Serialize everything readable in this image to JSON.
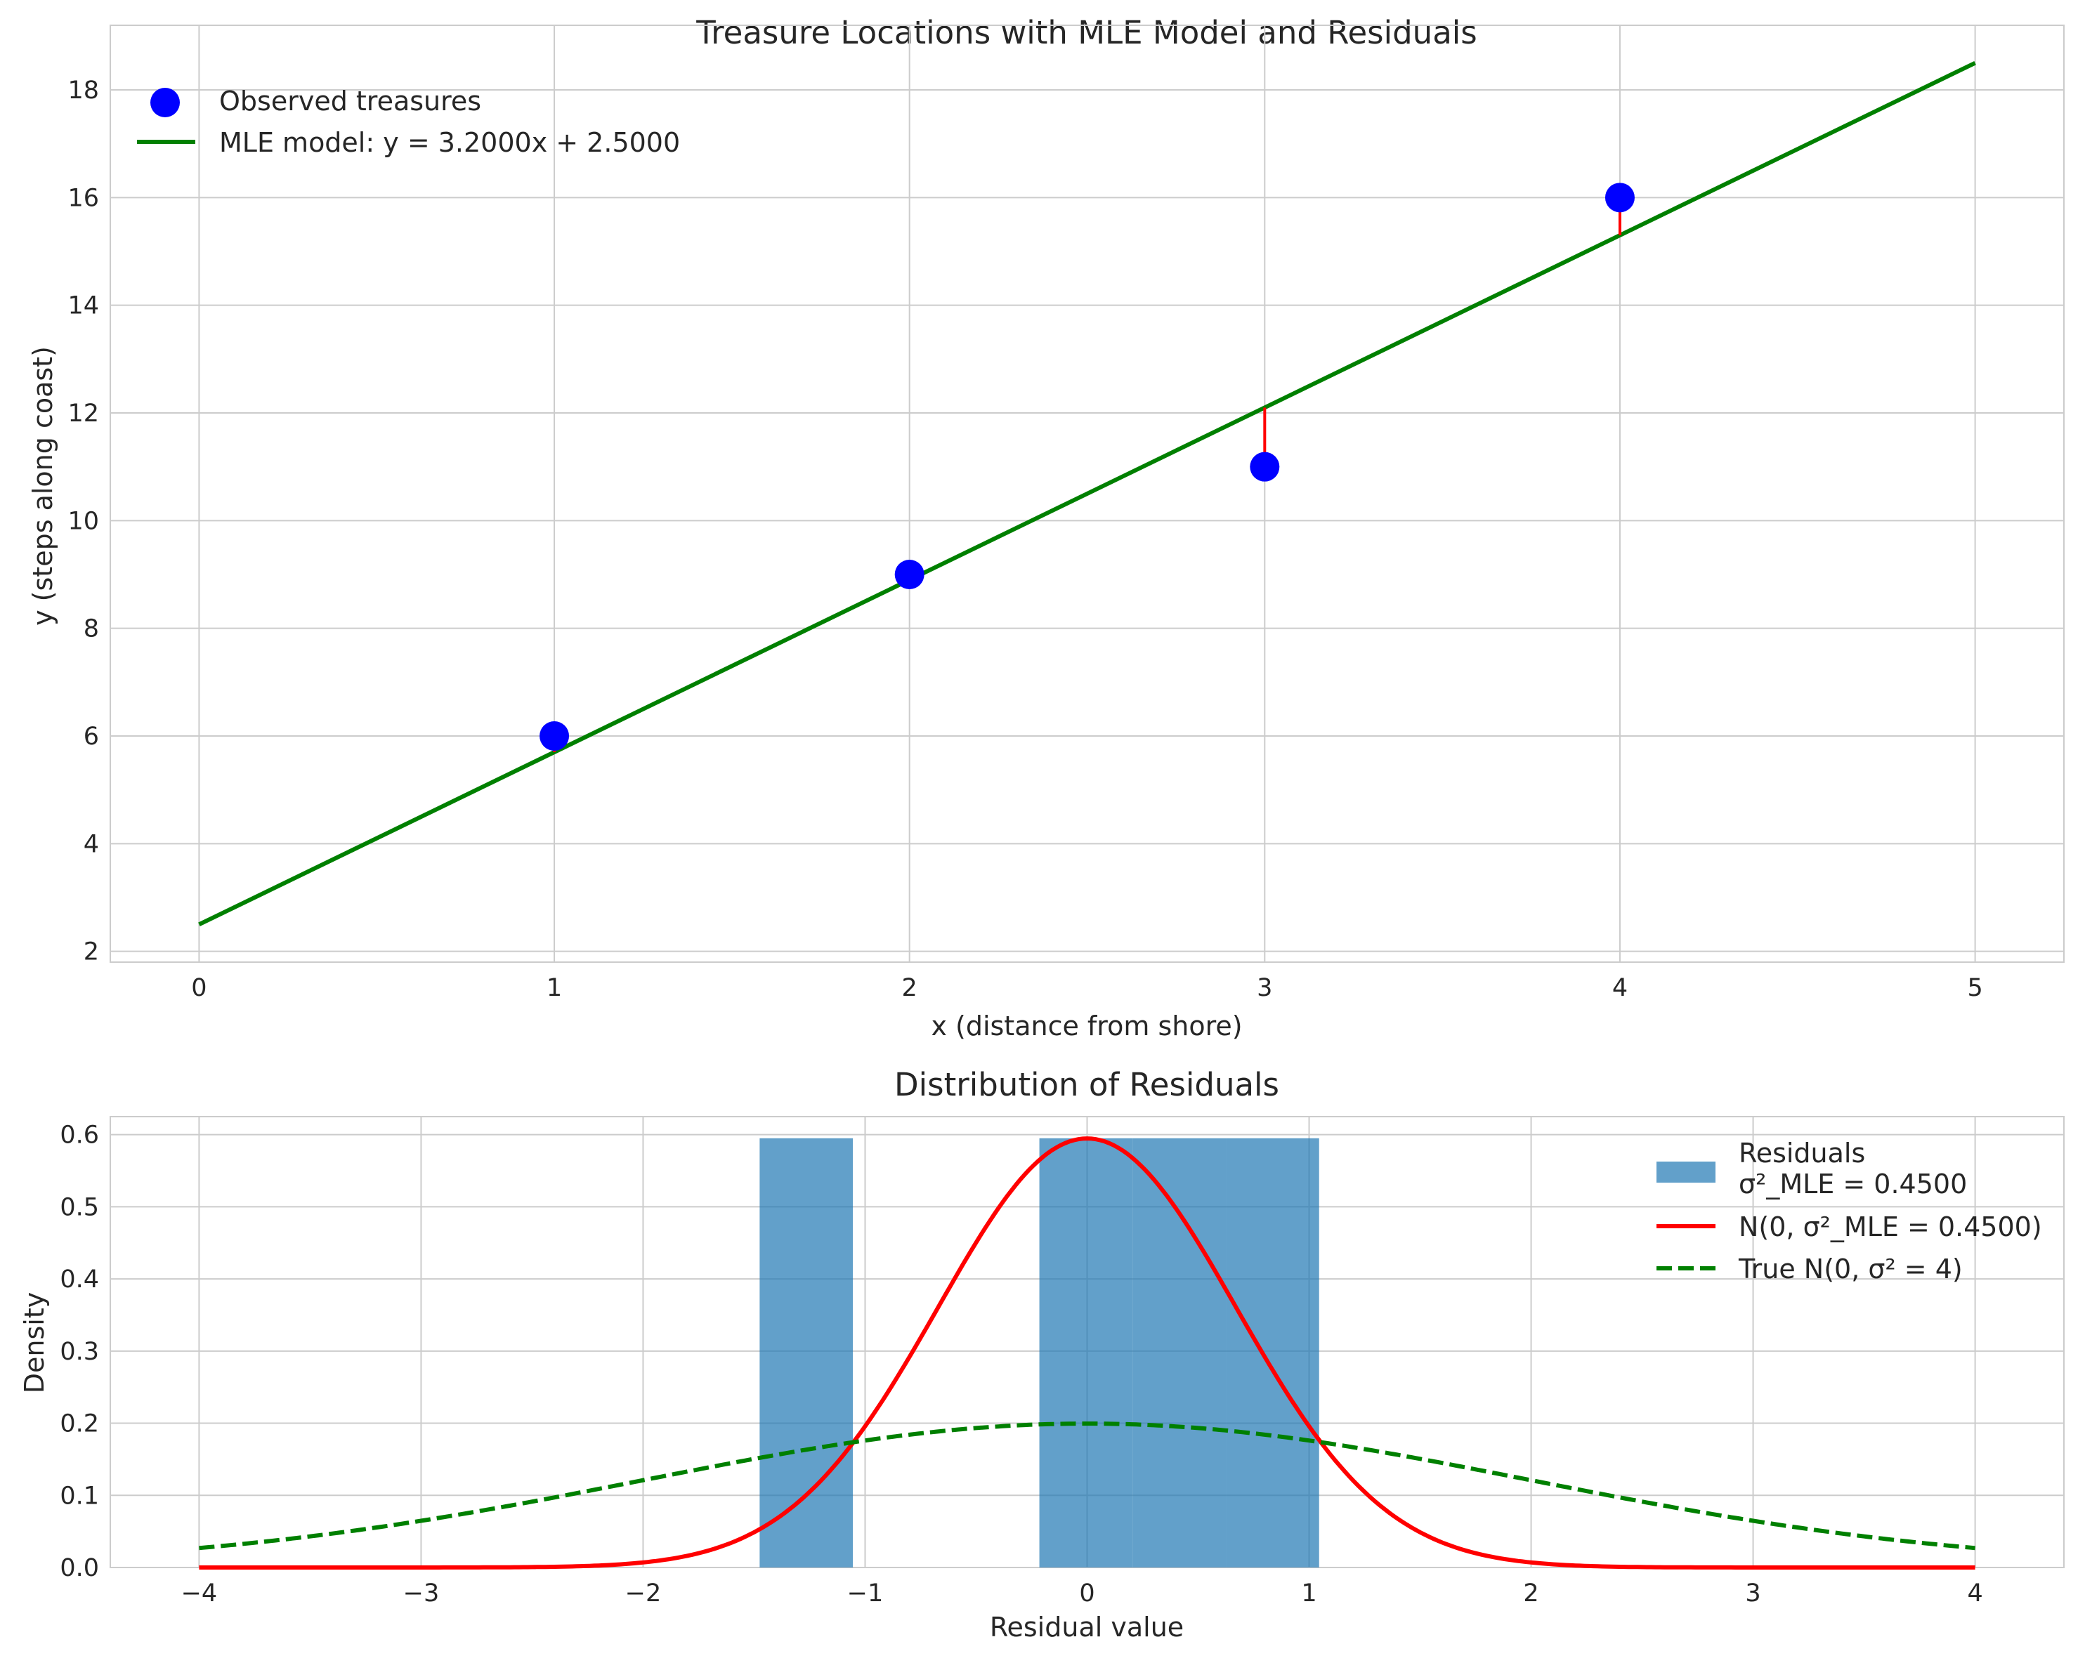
{
  "chart_data": [
    {
      "type": "scatter",
      "title": "Treasure Locations with MLE Model and Residuals",
      "xlabel": "x (distance from shore)",
      "ylabel": "y (steps along coast)",
      "xlim": [
        -0.25,
        5.25
      ],
      "ylim": [
        1.8,
        19.2
      ],
      "xticks": [
        0,
        1,
        2,
        3,
        4,
        5
      ],
      "yticks": [
        2,
        4,
        6,
        8,
        10,
        12,
        14,
        16,
        18
      ],
      "grid": true,
      "legend_position": "top-left",
      "series": [
        {
          "name": "Observed treasures",
          "kind": "scatter",
          "color": "#0000ff",
          "x": [
            1,
            2,
            3,
            4
          ],
          "y": [
            6,
            9,
            11,
            16
          ]
        },
        {
          "name": "MLE model: y = 3.2000x + 2.5000",
          "kind": "line",
          "color": "#008000",
          "slope": 3.2,
          "intercept": 2.5,
          "x_range": [
            0,
            5
          ]
        }
      ],
      "residual_segments": {
        "color": "#ff0000",
        "x": [
          1,
          2,
          3,
          4
        ],
        "observed": [
          6,
          9,
          11,
          16
        ],
        "fitted": [
          5.7,
          8.9,
          12.1,
          15.3
        ]
      }
    },
    {
      "type": "histogram",
      "title": "Distribution of Residuals",
      "xlabel": "Residual value",
      "ylabel": "Density",
      "xlim": [
        -4.4,
        4.4
      ],
      "ylim": [
        0,
        0.625
      ],
      "xticks": [
        -4,
        -3,
        -2,
        -1,
        0,
        1,
        2,
        3,
        4
      ],
      "yticks": [
        0.0,
        0.1,
        0.2,
        0.3,
        0.4,
        0.5,
        0.6
      ],
      "grid": true,
      "legend_position": "top-right",
      "bars": {
        "name_lines": [
          "Residuals",
          "σ²_MLE = 0.4500"
        ],
        "color": "#1f77b4",
        "opacity": 0.7,
        "bins": [
          [
            -1.475,
            -1.055,
            0.595
          ],
          [
            -0.215,
            0.205,
            0.595
          ],
          [
            0.205,
            0.625,
            0.595
          ],
          [
            0.625,
            1.045,
            0.595
          ]
        ]
      },
      "curves": [
        {
          "name": "N(0, σ²_MLE = 0.4500)",
          "color": "#ff0000",
          "dashed": false,
          "mean": 0,
          "variance": 0.45,
          "x_range": [
            -4,
            4
          ]
        },
        {
          "name": "True N(0, σ² = 4)",
          "color": "#008000",
          "dashed": true,
          "mean": 0,
          "variance": 4,
          "x_range": [
            -4,
            4
          ]
        }
      ]
    }
  ]
}
